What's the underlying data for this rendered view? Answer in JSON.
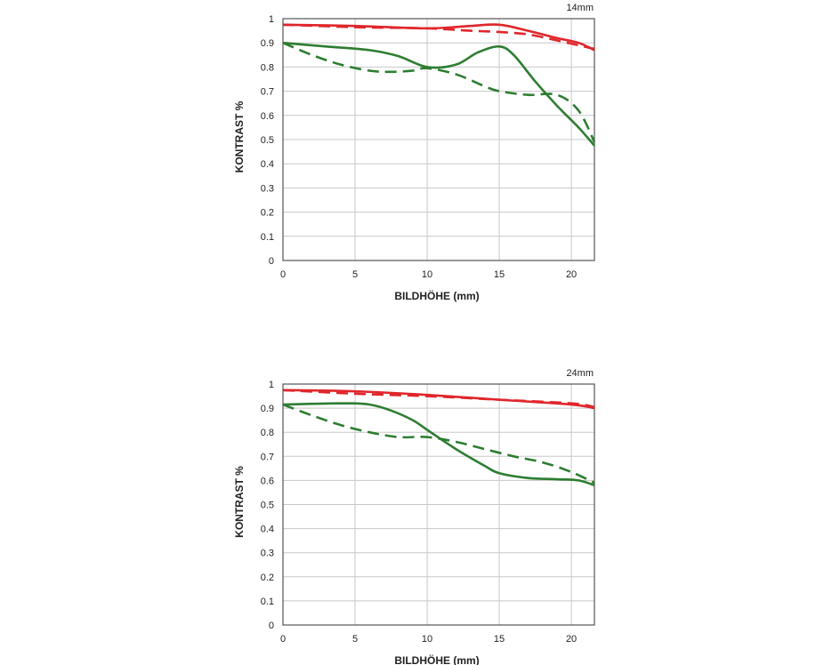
{
  "colors": {
    "sagittal_red": "#e0262b",
    "meridional_green": "#2e7d32",
    "grid": "#c8c8c8",
    "axis": "#555555"
  },
  "chart_data": [
    {
      "type": "line",
      "title": "14mm",
      "xlabel": "BILDHÖHE (mm)",
      "ylabel": "KONTRAST %",
      "xlim": [
        0,
        21.6
      ],
      "ylim": [
        0,
        1
      ],
      "x_ticks": [
        0,
        5,
        10,
        15,
        20
      ],
      "y_ticks": [
        0,
        0.1,
        0.2,
        0.3,
        0.4,
        0.5,
        0.6,
        0.7,
        0.8,
        0.9,
        1
      ],
      "y_tick_labels": [
        "0",
        "0.1",
        "0.2",
        "0.3",
        "0.4",
        "0.5",
        "0.6",
        "0.7",
        "0.8",
        "0.9",
        "1"
      ],
      "x_tick_labels": [
        "0",
        "5",
        "10",
        "15",
        "20"
      ],
      "grid": true,
      "series": [
        {
          "name": "red-solid",
          "color": "red",
          "dash": false,
          "x": [
            0,
            5,
            10,
            13,
            15,
            17,
            19,
            20.5,
            21.6
          ],
          "y": [
            0.975,
            0.97,
            0.96,
            0.97,
            0.975,
            0.95,
            0.92,
            0.9,
            0.87
          ]
        },
        {
          "name": "red-dashed",
          "color": "red",
          "dash": true,
          "x": [
            0,
            5,
            10,
            13,
            15,
            17,
            19,
            20.5,
            21.6
          ],
          "y": [
            0.975,
            0.965,
            0.96,
            0.95,
            0.945,
            0.935,
            0.91,
            0.89,
            0.875
          ]
        },
        {
          "name": "green-solid",
          "color": "green",
          "dash": false,
          "x": [
            0,
            3,
            6,
            8,
            10,
            12,
            13.5,
            15,
            16,
            17.5,
            19,
            20.5,
            21.6
          ],
          "y": [
            0.9,
            0.885,
            0.87,
            0.845,
            0.8,
            0.81,
            0.86,
            0.885,
            0.85,
            0.74,
            0.64,
            0.55,
            0.475
          ]
        },
        {
          "name": "green-dashed",
          "color": "green",
          "dash": true,
          "x": [
            0,
            2,
            4,
            6,
            7.5,
            9,
            10,
            12,
            14,
            15,
            17,
            19,
            20.5,
            21.6
          ],
          "y": [
            0.9,
            0.85,
            0.81,
            0.785,
            0.78,
            0.785,
            0.795,
            0.77,
            0.72,
            0.7,
            0.685,
            0.685,
            0.62,
            0.49
          ]
        }
      ]
    },
    {
      "type": "line",
      "title": "24mm",
      "xlabel": "BILDHÖHE (mm)",
      "ylabel": "KONTRAST %",
      "xlim": [
        0,
        21.6
      ],
      "ylim": [
        0,
        1
      ],
      "x_ticks": [
        0,
        5,
        10,
        15,
        20
      ],
      "y_ticks": [
        0,
        0.1,
        0.2,
        0.3,
        0.4,
        0.5,
        0.6,
        0.7,
        0.8,
        0.9,
        1
      ],
      "y_tick_labels": [
        "0",
        "0.1",
        "0.2",
        "0.3",
        "0.4",
        "0.5",
        "0.6",
        "0.7",
        "0.8",
        "0.9",
        "1"
      ],
      "x_tick_labels": [
        "0",
        "5",
        "10",
        "15",
        "20"
      ],
      "grid": true,
      "series": [
        {
          "name": "red-solid",
          "color": "red",
          "dash": false,
          "x": [
            0,
            5,
            10,
            15,
            20,
            21.6
          ],
          "y": [
            0.975,
            0.97,
            0.955,
            0.935,
            0.915,
            0.9
          ]
        },
        {
          "name": "red-dashed",
          "color": "red",
          "dash": true,
          "x": [
            0,
            5,
            10,
            15,
            20,
            21.6
          ],
          "y": [
            0.975,
            0.96,
            0.95,
            0.935,
            0.92,
            0.905
          ]
        },
        {
          "name": "green-solid",
          "color": "green",
          "dash": false,
          "x": [
            0,
            2,
            4.5,
            6,
            7.5,
            9,
            10,
            12,
            14,
            15,
            17,
            19,
            20.5,
            21.6
          ],
          "y": [
            0.915,
            0.918,
            0.92,
            0.915,
            0.89,
            0.85,
            0.81,
            0.73,
            0.66,
            0.63,
            0.61,
            0.605,
            0.6,
            0.58
          ]
        },
        {
          "name": "green-dashed",
          "color": "green",
          "dash": true,
          "x": [
            0,
            2,
            4,
            6,
            8,
            10,
            12,
            14,
            16,
            18,
            20,
            21.6
          ],
          "y": [
            0.915,
            0.87,
            0.83,
            0.8,
            0.78,
            0.78,
            0.76,
            0.73,
            0.7,
            0.675,
            0.635,
            0.59
          ]
        }
      ]
    }
  ]
}
